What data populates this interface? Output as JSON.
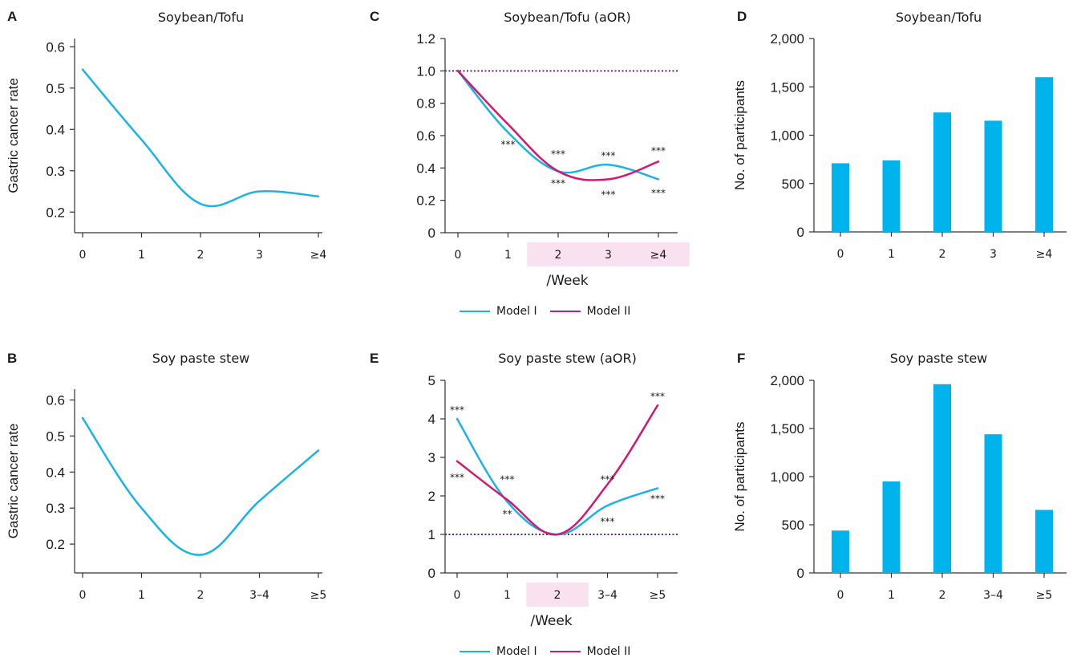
{
  "colors": {
    "model1": "#1ab3e6",
    "model2": "#d3196f",
    "bar": "#00b3ec",
    "ref": "#5a2a7a",
    "highlight": "#f9e1ef",
    "axis": "#333333"
  },
  "legend": {
    "model1": "Model I",
    "model2": "Model II"
  },
  "chart_data": [
    {
      "panel": "A",
      "type": "line",
      "title": "Soybean/Tofu",
      "xlabel": "",
      "ylabel": "Gastric cancer rate",
      "categories": [
        "0",
        "1",
        "2",
        "3",
        "≥4"
      ],
      "ylim": [
        0.15,
        0.62
      ],
      "yticks": [
        0.2,
        0.3,
        0.4,
        0.5,
        0.6
      ],
      "ytick_labels": [
        "0.2",
        "0.3",
        "0.4",
        "0.5",
        "0.6"
      ],
      "series": [
        {
          "values": [
            0.545,
            0.375,
            0.22,
            0.25,
            0.238
          ]
        }
      ]
    },
    {
      "panel": "B",
      "type": "line",
      "title": "Soy paste stew",
      "xlabel": "",
      "ylabel": "Gastric cancer rate",
      "categories": [
        "0",
        "1",
        "2",
        "3–4",
        "≥5"
      ],
      "ylim": [
        0.12,
        0.63
      ],
      "yticks": [
        0.2,
        0.3,
        0.4,
        0.5,
        0.6
      ],
      "ytick_labels": [
        "0.2",
        "0.3",
        "0.4",
        "0.5",
        "0.6"
      ],
      "series": [
        {
          "values": [
            0.55,
            0.3,
            0.17,
            0.32,
            0.46
          ]
        }
      ]
    },
    {
      "panel": "C",
      "type": "line",
      "title": "Soybean/Tofu (aOR)",
      "xlabel": "/Week",
      "ylabel": "",
      "categories": [
        "0",
        "1",
        "2",
        "3",
        "≥4"
      ],
      "ylim": [
        0,
        1.2
      ],
      "yticks": [
        0,
        0.2,
        0.4,
        0.6,
        0.8,
        1.0,
        1.2
      ],
      "ytick_labels": [
        "0",
        "0.2",
        "0.4",
        "0.6",
        "0.8",
        "1.0",
        "1.2"
      ],
      "reference_line": 1.0,
      "highlight_categories": [
        2,
        4
      ],
      "series": [
        {
          "name": "Model I",
          "values": [
            1.0,
            0.62,
            0.38,
            0.42,
            0.33
          ]
        },
        {
          "name": "Model II",
          "values": [
            1.0,
            0.67,
            0.38,
            0.33,
            0.44
          ]
        }
      ],
      "annotations": [
        {
          "x": 1,
          "y": 0.55,
          "text": "***"
        },
        {
          "x": 2,
          "y": 0.49,
          "text": "***"
        },
        {
          "x": 2,
          "y": 0.31,
          "text": "***"
        },
        {
          "x": 3,
          "y": 0.48,
          "text": "***"
        },
        {
          "x": 3,
          "y": 0.24,
          "text": "***"
        },
        {
          "x": 4,
          "y": 0.51,
          "text": "***"
        },
        {
          "x": 4,
          "y": 0.25,
          "text": "***"
        }
      ]
    },
    {
      "panel": "E",
      "type": "line",
      "title": "Soy paste stew (aOR)",
      "xlabel": "/Week",
      "ylabel": "",
      "categories": [
        "0",
        "1",
        "2",
        "3–4",
        "≥5"
      ],
      "ylim": [
        0,
        5
      ],
      "yticks": [
        0,
        1,
        2,
        3,
        4,
        5
      ],
      "ytick_labels": [
        "0",
        "1",
        "2",
        "3",
        "4",
        "5"
      ],
      "reference_line": 1.0,
      "highlight_categories": [
        2,
        2
      ],
      "series": [
        {
          "name": "Model I",
          "values": [
            4.0,
            1.85,
            1.0,
            1.75,
            2.2
          ]
        },
        {
          "name": "Model II",
          "values": [
            2.9,
            1.9,
            1.0,
            2.3,
            4.35
          ]
        }
      ],
      "annotations": [
        {
          "x": 0,
          "y": 4.25,
          "text": "***"
        },
        {
          "x": 0,
          "y": 2.5,
          "text": "***"
        },
        {
          "x": 1,
          "y": 2.45,
          "text": "***"
        },
        {
          "x": 1,
          "y": 1.55,
          "text": "**"
        },
        {
          "x": 3,
          "y": 2.45,
          "text": "***"
        },
        {
          "x": 3,
          "y": 1.35,
          "text": "***"
        },
        {
          "x": 4,
          "y": 4.6,
          "text": "***"
        },
        {
          "x": 4,
          "y": 1.95,
          "text": "***"
        }
      ]
    },
    {
      "panel": "D",
      "type": "bar",
      "title": "Soybean/Tofu",
      "xlabel": "",
      "ylabel": "No. of participants",
      "categories": [
        "0",
        "1",
        "2",
        "3",
        "≥4"
      ],
      "ylim": [
        0,
        2000
      ],
      "yticks": [
        0,
        500,
        1000,
        1500,
        2000
      ],
      "ytick_labels": [
        "0",
        "500",
        "1,000",
        "1,500",
        "2,000"
      ],
      "values": [
        710,
        740,
        1235,
        1150,
        1600
      ]
    },
    {
      "panel": "F",
      "type": "bar",
      "title": "Soy paste stew",
      "xlabel": "",
      "ylabel": "No. of participants",
      "categories": [
        "0",
        "1",
        "2",
        "3–4",
        "≥5"
      ],
      "ylim": [
        0,
        2000
      ],
      "yticks": [
        0,
        500,
        1000,
        1500,
        2000
      ],
      "ytick_labels": [
        "0",
        "500",
        "1,000",
        "1,500",
        "2,000"
      ],
      "values": [
        440,
        950,
        1960,
        1440,
        655
      ]
    }
  ]
}
